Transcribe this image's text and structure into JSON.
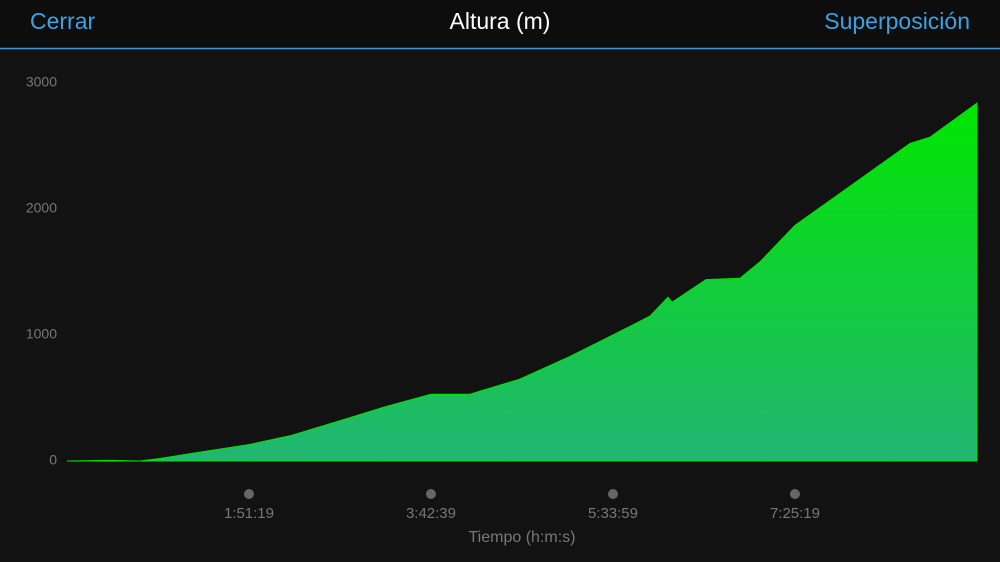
{
  "header": {
    "left": "Cerrar",
    "title": "Altura (m)",
    "right": "Superposición"
  },
  "chart_data": {
    "type": "area",
    "color": "#00e600",
    "grid": false,
    "x_label": "Tiempo (h:m:s)",
    "x": [
      0,
      1652,
      2679,
      3413,
      4882,
      6680,
      8185,
      10020,
      11672,
      13360,
      14791,
      16626,
      18462,
      20040,
      21398,
      22058,
      22205,
      23453,
      24701,
      25435,
      26719,
      28738,
      30941,
      31675,
      33400
    ],
    "values": [
      0,
      5,
      0,
      20,
      70,
      130,
      200,
      320,
      430,
      530,
      530,
      650,
      830,
      1000,
      1150,
      1300,
      1260,
      1440,
      1450,
      1580,
      1870,
      2180,
      2520,
      2570,
      2840
    ],
    "xlim": [
      0,
      33400
    ],
    "xticks": [
      {
        "value": 6679,
        "label": "1:51:19"
      },
      {
        "value": 13359,
        "label": "3:42:39"
      },
      {
        "value": 20039,
        "label": "5:33:59"
      },
      {
        "value": 26719,
        "label": "7:25:19"
      }
    ],
    "ylim": [
      0,
      3000
    ],
    "yticks": [
      0,
      1000,
      2000,
      3000
    ]
  }
}
